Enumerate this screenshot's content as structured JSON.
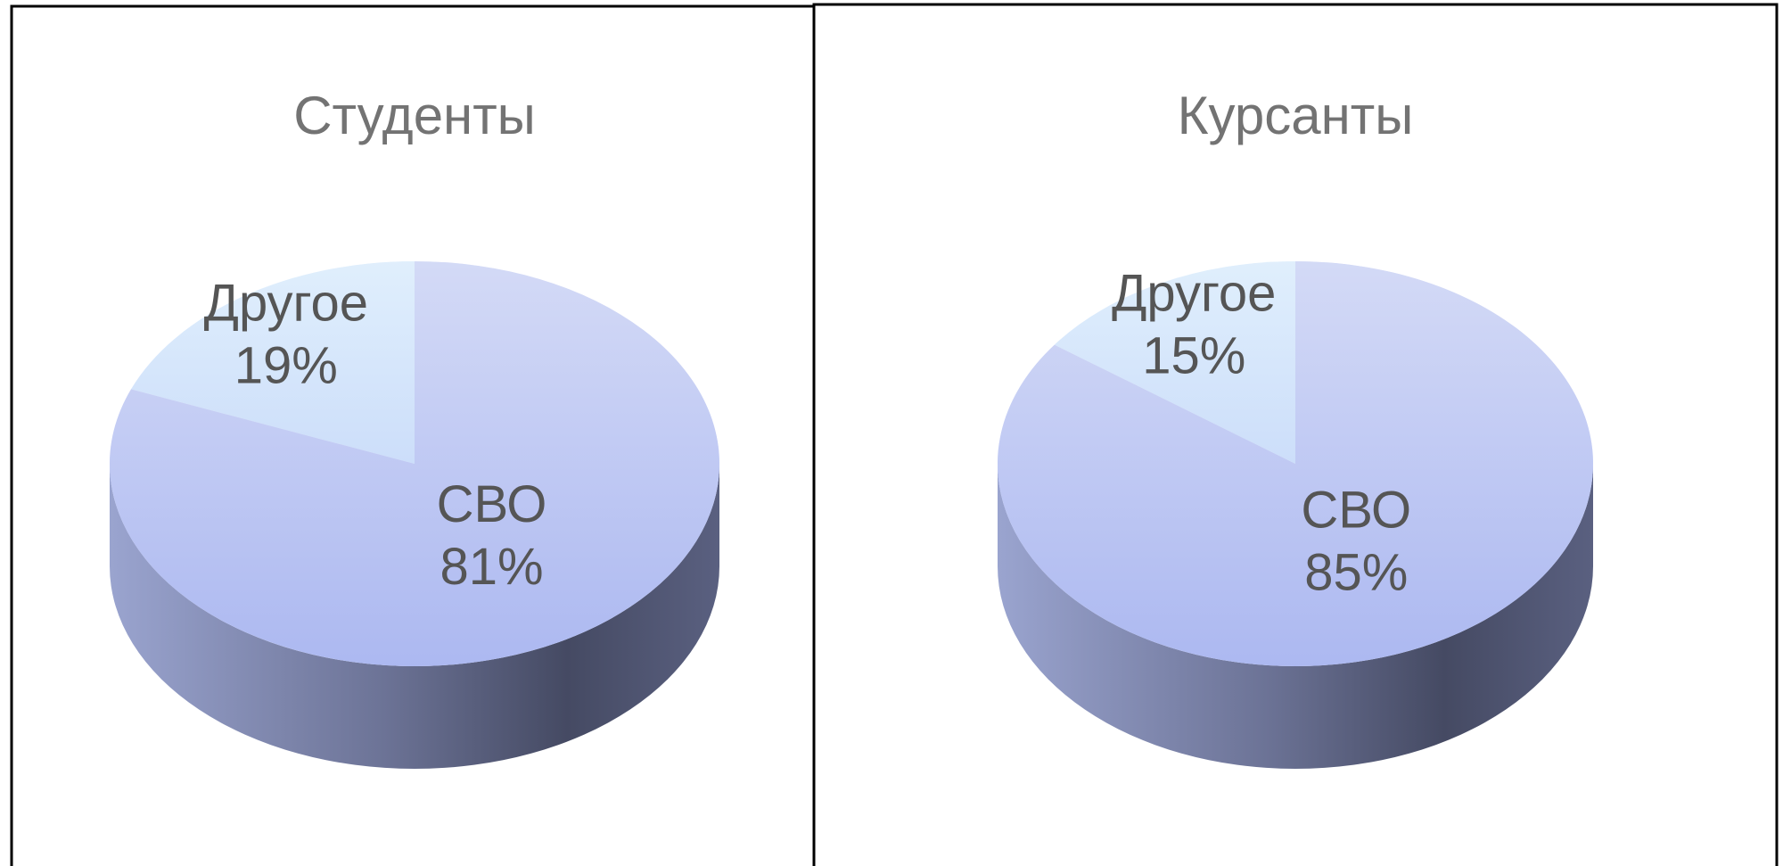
{
  "chart_data": [
    {
      "type": "pie",
      "title": "Студенты",
      "categories": [
        "Другое",
        "СВО"
      ],
      "values": [
        19,
        81
      ],
      "value_labels": [
        "19%",
        "81%"
      ],
      "colors": [
        "#cfe6fb",
        "#bcc6f1"
      ]
    },
    {
      "type": "pie",
      "title": "Курсанты",
      "categories": [
        "Другое",
        "СВО"
      ],
      "values": [
        15,
        85
      ],
      "value_labels": [
        "15%",
        "85%"
      ],
      "colors": [
        "#cfe6fb",
        "#bcc6f1"
      ]
    }
  ]
}
